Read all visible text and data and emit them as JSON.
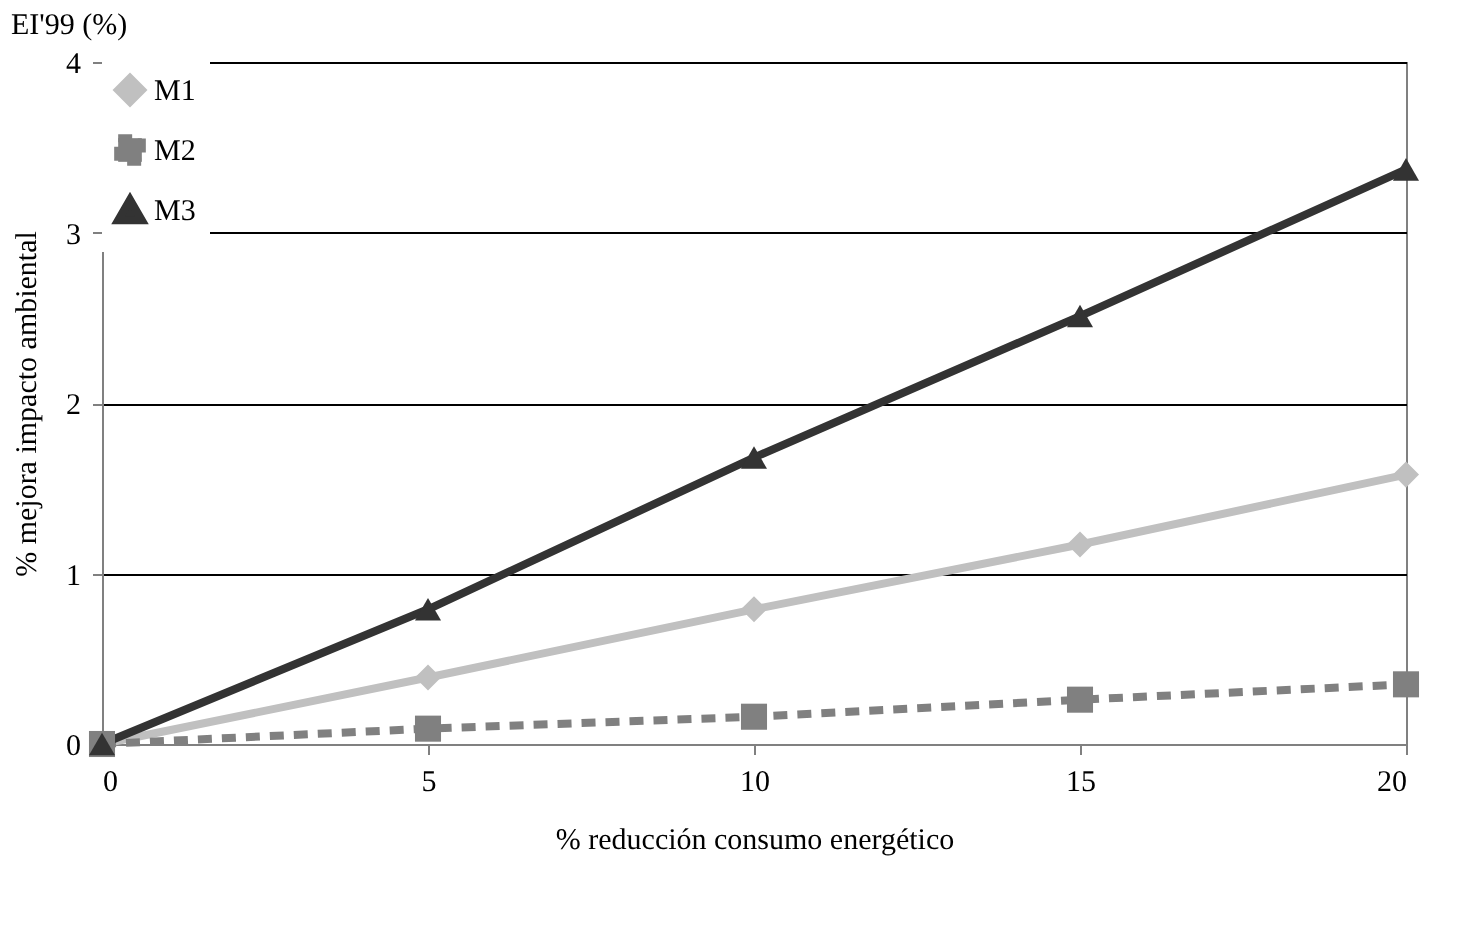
{
  "chart_data": {
    "type": "line",
    "annotations": [
      "EI'99 (%)"
    ],
    "xlabel": "% reducción consumo energético",
    "ylabel": "% mejora impacto ambiental",
    "x": [
      0,
      5,
      10,
      15,
      20
    ],
    "xlim": [
      0,
      20
    ],
    "xticks": [
      0,
      5,
      10,
      15,
      20
    ],
    "ylim": [
      0,
      4
    ],
    "yticks": [
      0,
      1,
      2,
      3,
      4
    ],
    "grid": "y",
    "legend": "top left",
    "series": [
      {
        "name": "M1",
        "color": "#c0c0c0",
        "marker": "diamond",
        "line_style": "solid",
        "values": [
          0,
          0.39,
          0.79,
          1.17,
          1.58
        ]
      },
      {
        "name": "M2",
        "color": "#808080",
        "marker": "square",
        "line_style": "dashed",
        "values": [
          0,
          0.09,
          0.16,
          0.26,
          0.35
        ]
      },
      {
        "name": "M3",
        "color": "#333333",
        "marker": "triangle",
        "line_style": "solid",
        "values": [
          0,
          0.79,
          1.68,
          2.51,
          3.37
        ]
      }
    ]
  }
}
